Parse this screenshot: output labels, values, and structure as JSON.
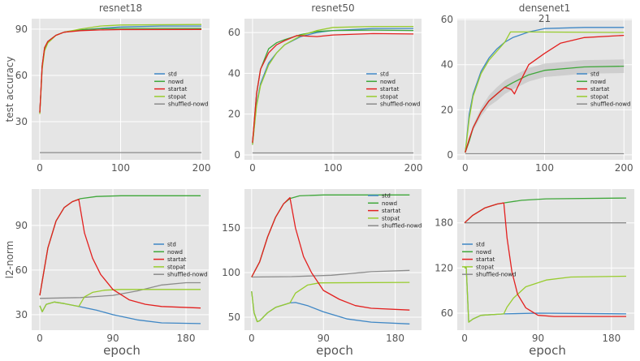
{
  "colors": {
    "std": "#3f87c5",
    "nowd": "#3fa73a",
    "startat": "#e3201f",
    "stopat": "#98cc2e",
    "shuffled-nowd": "#8c8c8c",
    "axes_bg": "#e5e5e5",
    "grid": "#ffffff"
  },
  "chart_data": [
    {
      "type": "line",
      "title": "resnet18",
      "xlabel": "",
      "ylabel": "test accuracy",
      "xlim": [
        -10,
        210
      ],
      "ylim": [
        5.3,
        96.8
      ],
      "xticks": [
        0,
        100,
        200
      ],
      "yticks": [
        30,
        60,
        90
      ],
      "grid": true,
      "legend": "center-right",
      "series": [
        {
          "name": "std",
          "x": [
            0,
            3,
            6,
            10,
            20,
            30,
            50,
            75,
            100,
            150,
            200
          ],
          "y": [
            36,
            65,
            77,
            82,
            86,
            88,
            89.5,
            90.5,
            91.5,
            92,
            92
          ]
        },
        {
          "name": "nowd",
          "x": [
            0,
            3,
            6,
            10,
            20,
            30,
            50,
            75,
            100,
            200
          ],
          "y": [
            36,
            66,
            78,
            82,
            86,
            88,
            89.5,
            90.3,
            90.5,
            90.5
          ]
        },
        {
          "name": "startat",
          "x": [
            0,
            3,
            6,
            10,
            20,
            30,
            50,
            75,
            100,
            200
          ],
          "y": [
            36,
            66,
            78,
            82,
            86,
            88,
            89,
            89.5,
            89.7,
            89.8
          ]
        },
        {
          "name": "stopat",
          "x": [
            0,
            3,
            6,
            10,
            20,
            30,
            50,
            75,
            100,
            200
          ],
          "y": [
            35,
            64,
            76,
            81,
            86,
            88,
            90,
            92,
            92.7,
            93
          ]
        },
        {
          "name": "shuffled-nowd",
          "x": [
            0,
            200
          ],
          "y": [
            10,
            10
          ]
        }
      ]
    },
    {
      "type": "line",
      "title": "resnet50",
      "xlabel": "",
      "ylabel": "",
      "xlim": [
        -10,
        210
      ],
      "ylim": [
        -2.4,
        66.8
      ],
      "xticks": [
        0,
        100,
        200
      ],
      "yticks": [
        0,
        20,
        40,
        60
      ],
      "grid": true,
      "legend": "center-right",
      "series": [
        {
          "name": "std",
          "x": [
            0,
            5,
            10,
            20,
            30,
            40,
            60,
            80,
            100,
            150,
            200
          ],
          "y": [
            5,
            25,
            35,
            45,
            50,
            54,
            58,
            60,
            61,
            62,
            62
          ]
        },
        {
          "name": "nowd",
          "x": [
            0,
            5,
            10,
            20,
            30,
            40,
            60,
            80,
            100,
            150,
            200
          ],
          "y": [
            6,
            30,
            42,
            52,
            55,
            56.5,
            59,
            60.5,
            61,
            61.2,
            61
          ]
        },
        {
          "name": "startat",
          "x": [
            0,
            5,
            10,
            20,
            30,
            40,
            55,
            80,
            100,
            150,
            200
          ],
          "y": [
            6,
            30,
            42,
            50,
            54,
            56,
            58.5,
            58,
            58.8,
            59.5,
            59.3
          ]
        },
        {
          "name": "stopat",
          "x": [
            0,
            5,
            10,
            20,
            30,
            40,
            60,
            80,
            100,
            150,
            200
          ],
          "y": [
            5,
            24,
            34,
            44,
            50,
            54,
            58.5,
            61,
            62.5,
            63,
            63
          ]
        },
        {
          "name": "shuffled-nowd",
          "x": [
            0,
            200
          ],
          "y": [
            1,
            1
          ]
        }
      ]
    },
    {
      "type": "line",
      "title": "densenet1\n21",
      "xlabel": "",
      "ylabel": "",
      "xlim": [
        -10,
        210
      ],
      "ylim": [
        -2.2,
        60.4
      ],
      "xticks": [
        0,
        100,
        200
      ],
      "yticks": [
        0,
        20,
        40,
        60
      ],
      "grid": true,
      "legend": "center-right",
      "series": [
        {
          "name": "std",
          "x": [
            0,
            5,
            10,
            20,
            30,
            40,
            50,
            60,
            80,
            100,
            150,
            200
          ],
          "y": [
            1,
            18,
            27,
            37,
            43,
            47,
            50,
            52,
            54.5,
            56,
            56.5,
            56.5
          ]
        },
        {
          "name": "nowd",
          "x": [
            0,
            5,
            10,
            20,
            30,
            40,
            50,
            60,
            80,
            100,
            150,
            200
          ],
          "y": [
            1,
            6,
            12,
            19,
            24,
            27,
            30,
            32,
            35.5,
            37.5,
            39,
            39.3
          ]
        },
        {
          "name": "startat",
          "x": [
            0,
            5,
            10,
            20,
            30,
            40,
            50,
            58,
            62,
            70,
            80,
            100,
            120,
            150,
            200
          ],
          "y": [
            1,
            7,
            12,
            19,
            24,
            27,
            30,
            29,
            27,
            33,
            40,
            45,
            49.5,
            52,
            53
          ]
        },
        {
          "name": "stopat",
          "x": [
            0,
            5,
            10,
            20,
            30,
            40,
            50,
            57,
            80,
            200
          ],
          "y": [
            1,
            16,
            26,
            36,
            42,
            46,
            50,
            54.5,
            54.5,
            54.3
          ]
        },
        {
          "name": "shuffled-nowd",
          "x": [
            0,
            200
          ],
          "y": [
            0.5,
            0.5
          ]
        }
      ]
    },
    {
      "type": "line",
      "title": "",
      "xlabel": "epoch",
      "ylabel": "l2-norm",
      "xlim": [
        -10,
        208
      ],
      "ylim": [
        19.6,
        114.5
      ],
      "xticks": [
        0,
        90,
        180
      ],
      "yticks": [
        30,
        60,
        90
      ],
      "grid": true,
      "legend": "center-right",
      "series": [
        {
          "name": "std",
          "x": [
            0,
            3,
            8,
            18,
            30,
            48,
            70,
            90,
            120,
            150,
            198
          ],
          "y": [
            36,
            32,
            37,
            38.5,
            37.5,
            35.5,
            33,
            30,
            26.5,
            24.5,
            24
          ]
        },
        {
          "name": "nowd",
          "x": [
            0,
            10,
            20,
            30,
            40,
            50,
            70,
            100,
            198
          ],
          "y": [
            43,
            75,
            93,
            102,
            106,
            108,
            109.5,
            110,
            110
          ]
        },
        {
          "name": "startat",
          "x": [
            0,
            10,
            20,
            30,
            40,
            48,
            55,
            65,
            75,
            90,
            110,
            130,
            150,
            198
          ],
          "y": [
            43,
            75,
            93,
            102,
            106,
            107.5,
            85,
            68,
            57,
            47,
            40,
            37,
            35.5,
            34.5
          ]
        },
        {
          "name": "stopat",
          "x": [
            0,
            3,
            8,
            18,
            30,
            48,
            55,
            65,
            80,
            100,
            198
          ],
          "y": [
            36,
            32,
            37,
            38.5,
            37.5,
            35.5,
            42,
            45,
            46.5,
            47,
            47
          ]
        },
        {
          "name": "shuffled-nowd",
          "x": [
            0,
            50,
            90,
            120,
            150,
            180,
            198
          ],
          "y": [
            41,
            41.5,
            43,
            46,
            50,
            51.5,
            51.5
          ]
        }
      ]
    },
    {
      "type": "line",
      "title": "",
      "xlabel": "epoch",
      "ylabel": "",
      "xlim": [
        -9,
        213
      ],
      "ylim": [
        35.5,
        193.6
      ],
      "xticks": [
        0,
        90,
        180
      ],
      "yticks": [
        50,
        100,
        150
      ],
      "grid": true,
      "legend": "upper-right",
      "series": [
        {
          "name": "std",
          "x": [
            0,
            3,
            7,
            10,
            20,
            30,
            48,
            55,
            70,
            90,
            120,
            150,
            198
          ],
          "y": [
            79,
            55,
            45,
            46,
            55,
            61,
            66,
            66.5,
            63,
            56,
            48,
            44.5,
            42.5
          ]
        },
        {
          "name": "nowd",
          "x": [
            0,
            10,
            20,
            30,
            40,
            48,
            60,
            90,
            198
          ],
          "y": [
            95,
            112,
            140,
            162,
            177,
            183,
            186,
            187,
            187
          ]
        },
        {
          "name": "startat",
          "x": [
            0,
            10,
            20,
            30,
            40,
            48,
            55,
            65,
            75,
            90,
            110,
            130,
            150,
            198
          ],
          "y": [
            95,
            112,
            140,
            162,
            177,
            184,
            150,
            118,
            100,
            80,
            70,
            63,
            60,
            58
          ]
        },
        {
          "name": "stopat",
          "x": [
            0,
            3,
            7,
            10,
            20,
            30,
            48,
            55,
            70,
            85,
            198
          ],
          "y": [
            79,
            55,
            45,
            46,
            55,
            61,
            66,
            77,
            86,
            88.5,
            89
          ]
        },
        {
          "name": "shuffled-nowd",
          "x": [
            0,
            50,
            100,
            150,
            198
          ],
          "y": [
            95,
            95.5,
            97,
            101,
            102.5
          ]
        }
      ]
    },
    {
      "type": "line",
      "title": "",
      "xlabel": "epoch",
      "ylabel": "",
      "xlim": [
        -9,
        208
      ],
      "ylim": [
        37.3,
        225
      ],
      "xticks": [
        0,
        90,
        180
      ],
      "yticks": [
        60,
        120,
        180
      ],
      "grid": true,
      "legend": "center-left",
      "series": [
        {
          "name": "std",
          "x": [
            0,
            2,
            5,
            10,
            20,
            48,
            90,
            198
          ],
          "y": [
            120,
            120,
            48,
            52,
            57,
            59,
            60,
            59
          ]
        },
        {
          "name": "nowd",
          "x": [
            0,
            10,
            25,
            40,
            48,
            70,
            100,
            198
          ],
          "y": [
            180,
            190,
            200,
            205,
            206.5,
            210,
            212,
            213
          ]
        },
        {
          "name": "startat",
          "x": [
            0,
            10,
            25,
            40,
            48,
            52,
            58,
            65,
            75,
            90,
            110,
            198
          ],
          "y": [
            180,
            190,
            200,
            205,
            206.5,
            160,
            115,
            85,
            67,
            57,
            55.5,
            55.5
          ]
        },
        {
          "name": "stopat",
          "x": [
            0,
            2,
            5,
            10,
            20,
            48,
            52,
            60,
            75,
            100,
            130,
            198
          ],
          "y": [
            120,
            120,
            48,
            52,
            57,
            59,
            68,
            80,
            95,
            104,
            108,
            109
          ]
        },
        {
          "name": "shuffled-nowd",
          "x": [
            0,
            198
          ],
          "y": [
            180,
            180
          ]
        }
      ]
    }
  ]
}
